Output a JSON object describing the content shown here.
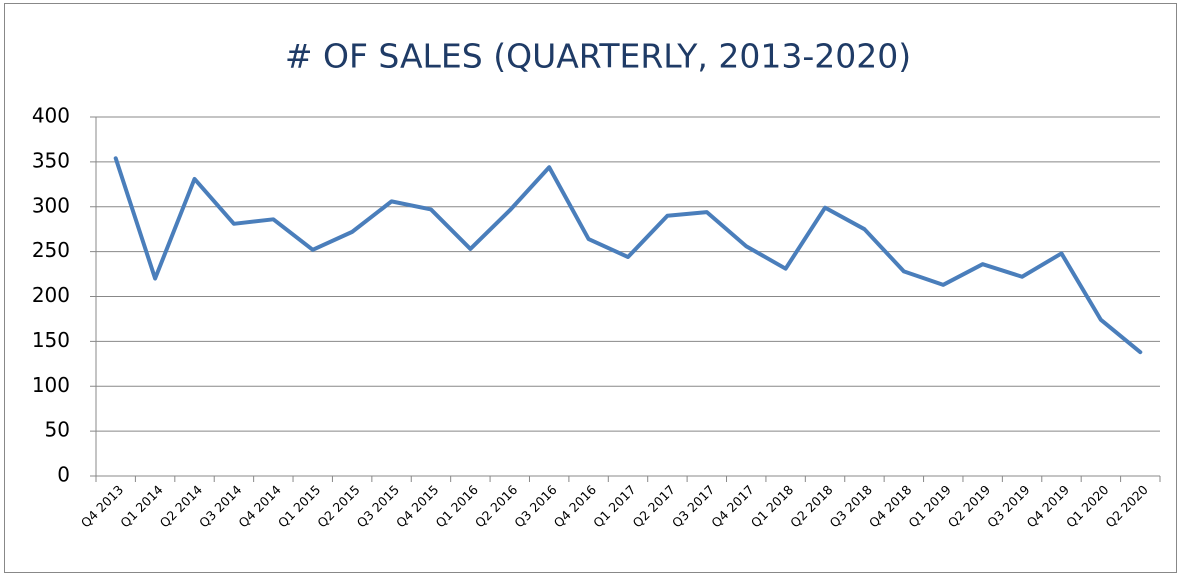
{
  "chart_data": {
    "type": "line",
    "title": "# OF SALES (QUARTERLY, 2013-2020)",
    "categories": [
      "Q4 2013",
      "Q1 2014",
      "Q2 2014",
      "Q3 2014",
      "Q4 2014",
      "Q1 2015",
      "Q2 2015",
      "Q3 2015",
      "Q4 2015",
      "Q1 2016",
      "Q2 2016",
      "Q3 2016",
      "Q4 2016",
      "Q1 2017",
      "Q2 2017",
      "Q3 2017",
      "Q4 2017",
      "Q1 2018",
      "Q2 2018",
      "Q3 2018",
      "Q4 2018",
      "Q1 2019",
      "Q2 2019",
      "Q3 2019",
      "Q4 2019",
      "Q1 2020",
      "Q2 2020"
    ],
    "values": [
      354,
      220,
      331,
      281,
      286,
      252,
      272,
      306,
      297,
      253,
      296,
      344,
      264,
      244,
      290,
      294,
      256,
      231,
      299,
      275,
      228,
      213,
      236,
      222,
      248,
      174,
      138
    ],
    "color": "#4a7ebb",
    "ylim": [
      0,
      400
    ],
    "yticks": [
      0,
      50,
      100,
      150,
      200,
      250,
      300,
      350,
      400
    ],
    "grid": true
  }
}
